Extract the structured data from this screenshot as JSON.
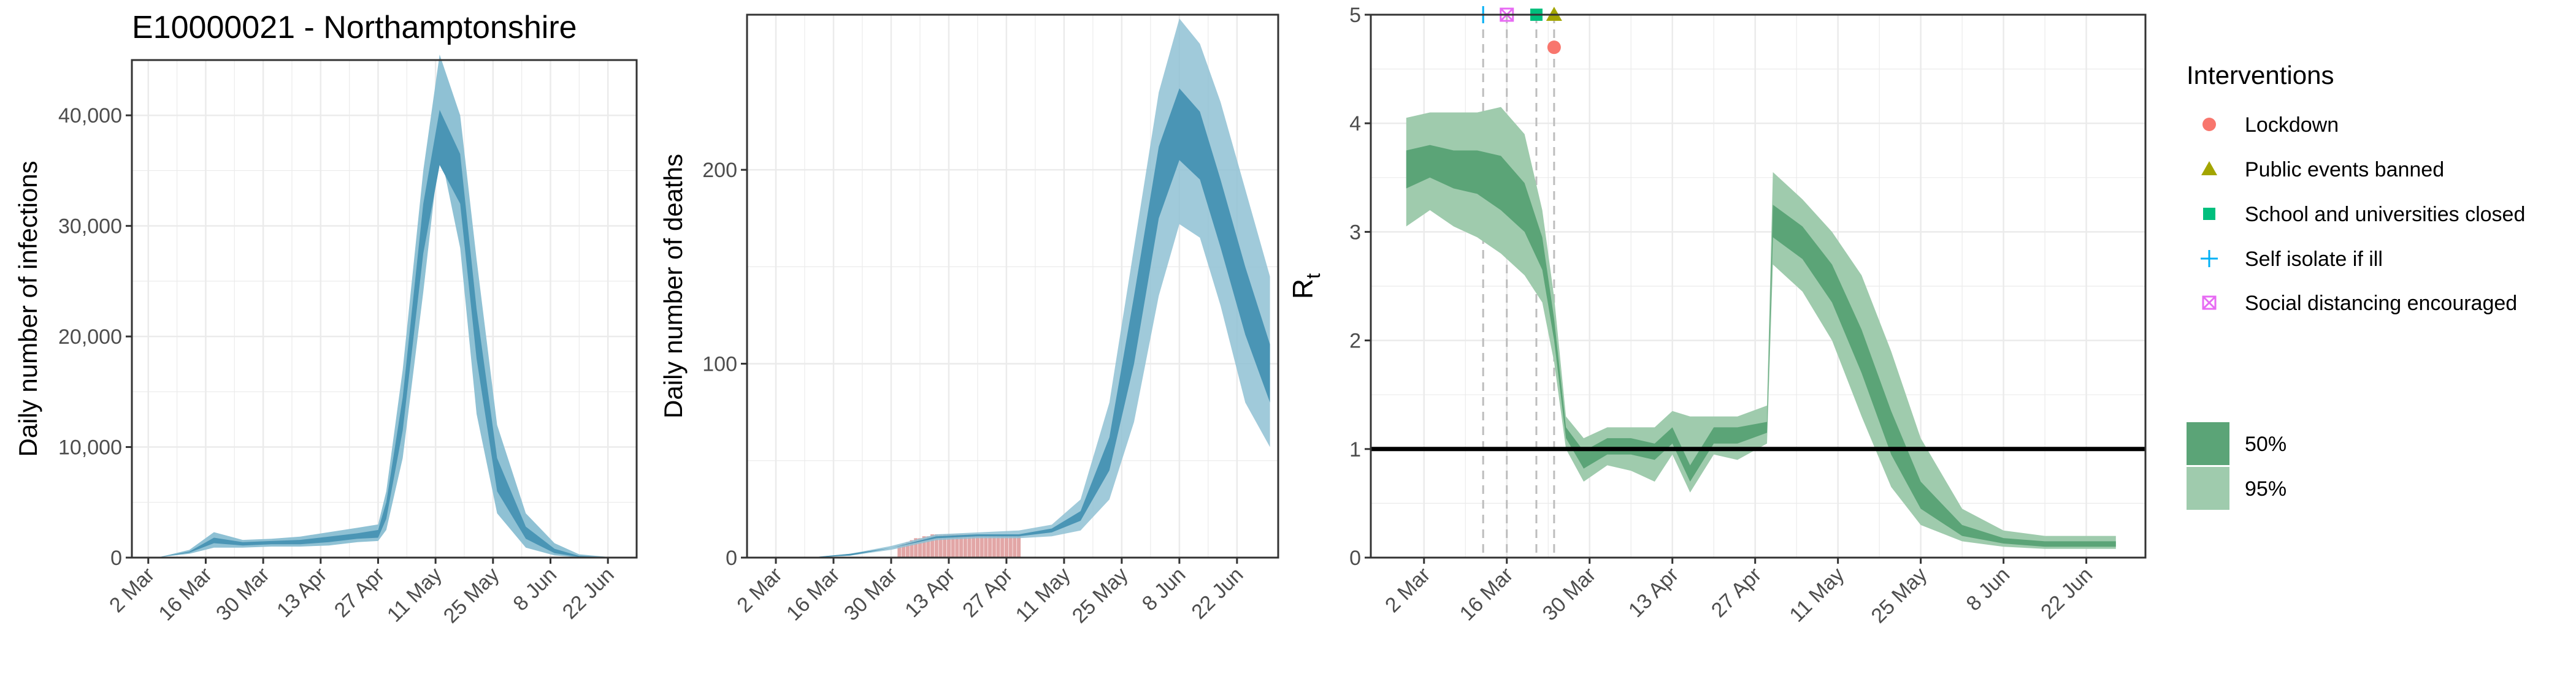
{
  "title": "E10000021 - Northamptonshire",
  "colors": {
    "blue_95": "#8fc1d4",
    "blue_50": "#4a95b5",
    "green_95": "#9fcbad",
    "green_50": "#5ba477",
    "deaths_bar": "#e2a6a6",
    "lockdown": "#f8766d",
    "public_events": "#a3a500",
    "schools": "#00bf7d",
    "self_isolate": "#00b0f6",
    "social_distancing": "#e76bf3",
    "grid": "#ebebeb",
    "dash": "#bdbdbd"
  },
  "date_ticks": [
    "2 Mar",
    "16 Mar",
    "30 Mar",
    "13 Apr",
    "27 Apr",
    "11 May",
    "25 May",
    "8 Jun",
    "22 Jun"
  ],
  "legend": {
    "interventions_title": "Interventions",
    "interventions": [
      {
        "label": "Lockdown",
        "icon": "circle-icon"
      },
      {
        "label": "Public events banned",
        "icon": "triangle-icon"
      },
      {
        "label": "School and universities closed",
        "icon": "square-icon"
      },
      {
        "label": "Self isolate if ill",
        "icon": "plus-icon"
      },
      {
        "label": "Social distancing encouraged",
        "icon": "boxed-x-icon"
      }
    ],
    "bands": [
      "50%",
      "95%"
    ]
  },
  "chart_data": [
    {
      "type": "area",
      "ylabel": "Daily number of infections",
      "ylim": [
        0,
        45000
      ],
      "yticks": [
        0,
        10000,
        20000,
        30000,
        40000
      ],
      "ytick_labels": [
        "0",
        "10,000",
        "20,000",
        "30,000",
        "40,000"
      ],
      "x_range": [
        "2020-02-27",
        "2020-06-29"
      ],
      "series": [
        {
          "name": "95%",
          "x": [
            "2020-02-27",
            "2020-03-05",
            "2020-03-12",
            "2020-03-18",
            "2020-03-25",
            "2020-04-01",
            "2020-04-08",
            "2020-04-15",
            "2020-04-22",
            "2020-04-27",
            "2020-04-29",
            "2020-05-03",
            "2020-05-08",
            "2020-05-12",
            "2020-05-17",
            "2020-05-21",
            "2020-05-26",
            "2020-06-02",
            "2020-06-09",
            "2020-06-15",
            "2020-06-24"
          ],
          "lower": [
            0,
            50,
            350,
            900,
            900,
            1000,
            1000,
            1100,
            1400,
            1500,
            2500,
            9000,
            24000,
            37000,
            28000,
            13000,
            4000,
            900,
            200,
            30,
            0
          ],
          "upper": [
            0,
            80,
            700,
            2300,
            1600,
            1700,
            1900,
            2300,
            2700,
            3000,
            6000,
            17000,
            35000,
            45500,
            40000,
            27000,
            12000,
            4000,
            1300,
            300,
            0
          ]
        },
        {
          "name": "50%",
          "x": [
            "2020-02-27",
            "2020-03-05",
            "2020-03-12",
            "2020-03-18",
            "2020-03-25",
            "2020-04-01",
            "2020-04-08",
            "2020-04-15",
            "2020-04-22",
            "2020-04-27",
            "2020-04-29",
            "2020-05-03",
            "2020-05-08",
            "2020-05-12",
            "2020-05-17",
            "2020-05-21",
            "2020-05-26",
            "2020-06-02",
            "2020-06-09",
            "2020-06-15",
            "2020-06-24"
          ],
          "lower": [
            0,
            60,
            450,
            1300,
            1100,
            1200,
            1200,
            1400,
            1700,
            1800,
            3500,
            11500,
            27500,
            35500,
            32000,
            18000,
            6000,
            1700,
            400,
            60,
            0
          ],
          "upper": [
            0,
            70,
            550,
            1800,
            1400,
            1500,
            1600,
            1900,
            2200,
            2500,
            5000,
            14500,
            32000,
            40500,
            36500,
            22500,
            9000,
            2800,
            800,
            150,
            0
          ]
        }
      ]
    },
    {
      "type": "area",
      "ylabel": "Daily number of deaths",
      "ylim": [
        0,
        280
      ],
      "yticks": [
        0,
        100,
        200
      ],
      "ytick_labels": [
        "0",
        "100",
        "200"
      ],
      "x_range": [
        "2020-02-24",
        "2020-07-02"
      ],
      "observed_deaths": {
        "x": [
          "2020-04-01",
          "2020-04-02",
          "2020-04-03",
          "2020-04-04",
          "2020-04-05",
          "2020-04-06",
          "2020-04-07",
          "2020-04-08",
          "2020-04-09",
          "2020-04-10",
          "2020-04-11",
          "2020-04-12",
          "2020-04-13",
          "2020-04-14",
          "2020-04-15",
          "2020-04-16",
          "2020-04-17",
          "2020-04-18",
          "2020-04-19",
          "2020-04-20",
          "2020-04-21",
          "2020-04-22",
          "2020-04-23",
          "2020-04-24",
          "2020-04-25",
          "2020-04-26",
          "2020-04-27",
          "2020-04-28",
          "2020-04-29",
          "2020-04-30"
        ],
        "values": [
          6,
          7,
          8,
          9,
          10,
          10,
          11,
          11,
          12,
          12,
          12,
          12,
          12,
          12,
          12,
          12,
          12,
          12,
          12,
          12,
          12,
          12,
          12,
          12,
          12,
          12,
          12,
          12,
          12,
          12
        ]
      },
      "series": [
        {
          "name": "95%",
          "x": [
            "2020-03-10",
            "2020-03-20",
            "2020-03-30",
            "2020-04-10",
            "2020-04-20",
            "2020-04-30",
            "2020-05-08",
            "2020-05-15",
            "2020-05-22",
            "2020-05-28",
            "2020-06-03",
            "2020-06-08",
            "2020-06-13",
            "2020-06-18",
            "2020-06-24",
            "2020-06-30"
          ],
          "lower": [
            0,
            1,
            4,
            9,
            10,
            10,
            11,
            14,
            30,
            70,
            135,
            172,
            165,
            130,
            80,
            57
          ],
          "upper": [
            0,
            2,
            6,
            12,
            13,
            14,
            17,
            30,
            80,
            160,
            240,
            278,
            265,
            235,
            190,
            145
          ]
        },
        {
          "name": "50%",
          "x": [
            "2020-03-10",
            "2020-03-20",
            "2020-03-30",
            "2020-04-10",
            "2020-04-20",
            "2020-04-30",
            "2020-05-08",
            "2020-05-15",
            "2020-05-22",
            "2020-05-28",
            "2020-06-03",
            "2020-06-08",
            "2020-06-13",
            "2020-06-18",
            "2020-06-24",
            "2020-06-30"
          ],
          "lower": [
            0,
            1,
            5,
            10,
            11,
            11,
            13,
            19,
            45,
            100,
            175,
            205,
            195,
            160,
            115,
            80
          ],
          "upper": [
            0,
            2,
            5,
            11,
            12,
            12,
            15,
            24,
            62,
            135,
            212,
            242,
            230,
            195,
            150,
            110
          ]
        }
      ]
    },
    {
      "type": "area",
      "ylabel": "R",
      "ylabel_sub": "t",
      "ylim": [
        0,
        5
      ],
      "yticks": [
        0,
        1,
        2,
        3,
        4,
        5
      ],
      "ytick_labels": [
        "0",
        "1",
        "2",
        "3",
        "4",
        "5"
      ],
      "reference_line": 1,
      "x_range": [
        "2020-02-22",
        "2020-07-02"
      ],
      "interventions": [
        {
          "name": "Self isolate if ill",
          "date": "2020-03-12",
          "y": 5
        },
        {
          "name": "Social distancing encouraged",
          "date": "2020-03-16",
          "y": 5
        },
        {
          "name": "School and universities closed",
          "date": "2020-03-21",
          "y": 5
        },
        {
          "name": "Public events banned",
          "date": "2020-03-24",
          "y": 5
        },
        {
          "name": "Lockdown",
          "date": "2020-03-24",
          "y": 4.7
        }
      ],
      "series": [
        {
          "name": "95%",
          "x": [
            "2020-02-28",
            "2020-03-03",
            "2020-03-07",
            "2020-03-11",
            "2020-03-15",
            "2020-03-19",
            "2020-03-22",
            "2020-03-24",
            "2020-03-26",
            "2020-03-29",
            "2020-04-02",
            "2020-04-06",
            "2020-04-10",
            "2020-04-13",
            "2020-04-16",
            "2020-04-20",
            "2020-04-24",
            "2020-04-29",
            "2020-04-30",
            "2020-05-05",
            "2020-05-10",
            "2020-05-15",
            "2020-05-20",
            "2020-05-25",
            "2020-06-01",
            "2020-06-08",
            "2020-06-15",
            "2020-06-27"
          ],
          "lower": [
            3.05,
            3.2,
            3.05,
            2.95,
            2.8,
            2.6,
            2.35,
            1.8,
            1.0,
            0.7,
            0.85,
            0.8,
            0.7,
            0.95,
            0.6,
            0.95,
            0.9,
            1.05,
            2.7,
            2.45,
            2.0,
            1.3,
            0.65,
            0.3,
            0.15,
            0.1,
            0.08,
            0.08
          ],
          "upper": [
            4.05,
            4.1,
            4.1,
            4.1,
            4.15,
            3.9,
            3.2,
            2.4,
            1.3,
            1.1,
            1.2,
            1.2,
            1.2,
            1.35,
            1.3,
            1.3,
            1.3,
            1.4,
            3.55,
            3.3,
            3.0,
            2.6,
            1.9,
            1.1,
            0.45,
            0.25,
            0.2,
            0.2
          ]
        },
        {
          "name": "50%",
          "x": [
            "2020-02-28",
            "2020-03-03",
            "2020-03-07",
            "2020-03-11",
            "2020-03-15",
            "2020-03-19",
            "2020-03-22",
            "2020-03-24",
            "2020-03-26",
            "2020-03-29",
            "2020-04-02",
            "2020-04-06",
            "2020-04-10",
            "2020-04-13",
            "2020-04-16",
            "2020-04-20",
            "2020-04-24",
            "2020-04-29",
            "2020-04-30",
            "2020-05-05",
            "2020-05-10",
            "2020-05-15",
            "2020-05-20",
            "2020-05-25",
            "2020-06-01",
            "2020-06-08",
            "2020-06-15",
            "2020-06-27"
          ],
          "lower": [
            3.4,
            3.5,
            3.4,
            3.35,
            3.2,
            3.0,
            2.65,
            2.0,
            1.1,
            0.82,
            0.95,
            0.95,
            0.9,
            1.05,
            0.7,
            1.05,
            1.05,
            1.15,
            2.95,
            2.75,
            2.35,
            1.7,
            0.95,
            0.45,
            0.2,
            0.13,
            0.1,
            0.1
          ],
          "upper": [
            3.75,
            3.8,
            3.75,
            3.75,
            3.7,
            3.45,
            2.95,
            2.2,
            1.2,
            0.98,
            1.1,
            1.1,
            1.05,
            1.2,
            0.85,
            1.2,
            1.2,
            1.25,
            3.25,
            3.05,
            2.7,
            2.1,
            1.35,
            0.7,
            0.3,
            0.18,
            0.15,
            0.15
          ]
        }
      ]
    }
  ]
}
